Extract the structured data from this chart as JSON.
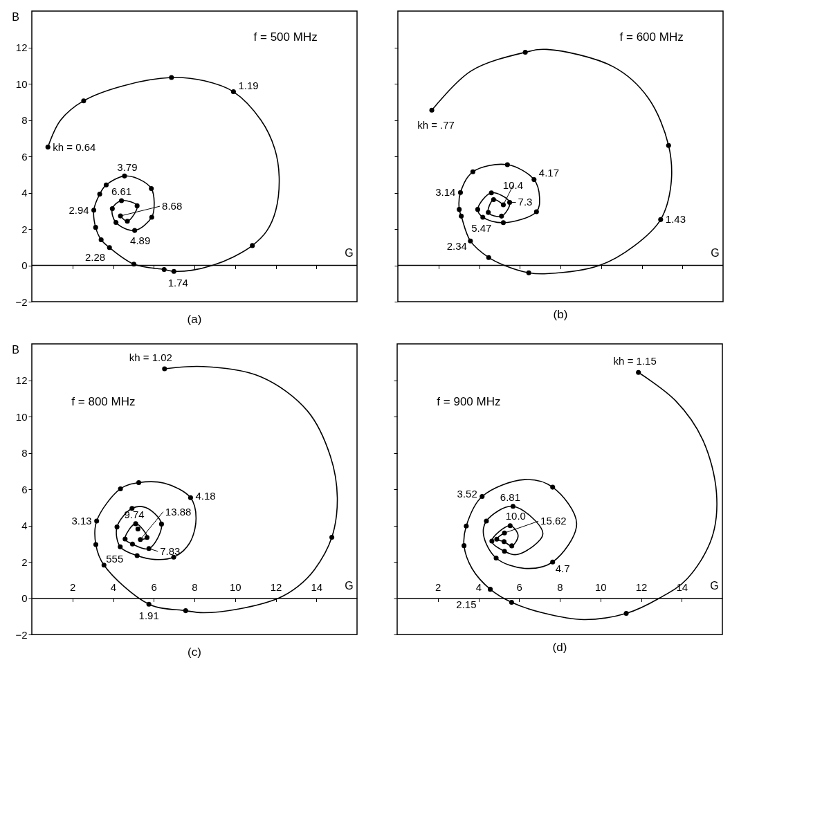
{
  "chart_data": [
    {
      "type": "line",
      "title": "(a)",
      "subtitle": "f = 500 MHz",
      "xlabel": "G",
      "ylabel": "B",
      "xlim": [
        0,
        16
      ],
      "ylim": [
        -2,
        14
      ],
      "xticks": [
        2,
        4,
        6,
        8,
        10,
        12,
        14
      ],
      "yticks": [
        -2,
        0,
        2,
        4,
        6,
        8,
        10,
        12
      ],
      "tick_labels": "y",
      "ref_lines": [
        {
          "axis": "y",
          "value": 0,
          "color": "#000000"
        }
      ],
      "series": [
        {
          "color": "#000000",
          "x": [
            0.79,
            1.42,
            2.55,
            4.47,
            6.87,
            8.49,
            9.92,
            11.27,
            11.95,
            12.17,
            12.0,
            11.55,
            10.85,
            9.91,
            8.89,
            7.87,
            6.99,
            6.51,
            5.02,
            3.82,
            3.41,
            3.14,
            3.05,
            3.34,
            3.66,
            4.56,
            5.32,
            5.88,
            6.02,
            5.9,
            5.06,
            4.14,
            3.96,
            4.41,
            5.18,
            4.7,
            4.36
          ],
          "values": [
            6.51,
            8.0,
            9.06,
            9.88,
            10.34,
            10.16,
            9.56,
            8.0,
            6.42,
            4.83,
            3.02,
            1.88,
            1.09,
            0.46,
            0.0,
            -0.27,
            -0.33,
            -0.23,
            0.07,
            0.98,
            1.41,
            2.09,
            3.04,
            3.92,
            4.43,
            4.92,
            4.72,
            4.23,
            3.47,
            2.65,
            1.92,
            2.36,
            3.12,
            3.56,
            3.28,
            2.43,
            2.72
          ]
        },
        {
          "type": "scatter",
          "marker": "circle",
          "color": "#000000",
          "x": [
            0.79,
            2.55,
            6.87,
            9.92,
            10.85,
            6.99,
            6.51,
            5.02,
            3.82,
            3.41,
            3.14,
            3.05,
            3.34,
            3.66,
            4.56,
            5.88,
            5.9,
            5.06,
            4.14,
            3.96,
            4.41,
            5.18,
            4.7,
            4.36
          ],
          "values": [
            6.51,
            9.06,
            10.34,
            9.56,
            1.09,
            -0.33,
            -0.23,
            0.07,
            0.98,
            1.41,
            2.09,
            3.04,
            3.92,
            4.43,
            4.92,
            4.23,
            2.65,
            1.92,
            2.36,
            3.12,
            3.56,
            3.28,
            2.43,
            2.72
          ]
        }
      ],
      "annotations": [
        {
          "text": "kh = 0.64",
          "x": 0.79,
          "y": 6.51
        },
        {
          "text": "1.19",
          "x": 9.92,
          "y": 9.56
        },
        {
          "text": "1.74",
          "x": 6.99,
          "y": -0.33
        },
        {
          "text": "2.28",
          "x": 3.82,
          "y": 0.98
        },
        {
          "text": "2.94",
          "x": 3.05,
          "y": 3.04
        },
        {
          "text": "3.79",
          "x": 4.56,
          "y": 4.92
        },
        {
          "text": "4.89",
          "x": 5.06,
          "y": 1.92
        },
        {
          "text": "6.61",
          "x": 4.41,
          "y": 3.56
        },
        {
          "text": "8.68",
          "x": 4.36,
          "y": 2.72
        }
      ]
    },
    {
      "type": "line",
      "title": "(b)",
      "subtitle": "f = 600 MHz",
      "xlabel": "G",
      "xlim": [
        0,
        16
      ],
      "ylim": [
        -2,
        14
      ],
      "xticks": [
        2,
        4,
        6,
        8,
        10,
        12,
        14
      ],
      "yticks": [
        -2,
        0,
        2,
        4,
        6,
        8,
        10,
        12
      ],
      "tick_labels": false,
      "ref_lines": [
        {
          "axis": "y",
          "value": 0,
          "color": "#000000"
        }
      ],
      "series": [
        {
          "color": "#000000",
          "x": [
            1.67,
            3.6,
            6.27,
            7.33,
            10.61,
            12.31,
            13.32,
            13.44,
            12.93,
            11.63,
            9.93,
            7.33,
            6.44,
            5.19,
            4.47,
            3.57,
            3.12,
            3.02,
            3.08,
            3.69,
            5.39,
            6.7,
            6.97,
            6.82,
            5.19,
            4.18,
            3.93,
            4.6,
            5.5,
            5.1,
            4.45,
            4.71,
            5.19
          ],
          "values": [
            8.54,
            10.7,
            11.73,
            11.89,
            10.93,
            9.23,
            6.6,
            4.47,
            2.52,
            1.07,
            0.0,
            -0.46,
            -0.41,
            0.02,
            0.43,
            1.34,
            2.71,
            3.08,
            4.01,
            5.15,
            5.54,
            4.72,
            3.73,
            2.95,
            2.35,
            2.65,
            3.08,
            3.99,
            3.47,
            2.71,
            2.91,
            3.62,
            3.33
          ]
        },
        {
          "type": "scatter",
          "marker": "circle",
          "color": "#000000",
          "x": [
            1.67,
            6.27,
            13.32,
            12.93,
            6.44,
            4.47,
            3.57,
            3.12,
            3.02,
            3.08,
            3.69,
            5.39,
            6.7,
            6.82,
            5.19,
            4.18,
            3.93,
            4.6,
            5.5,
            5.1,
            4.45,
            4.71,
            5.19
          ],
          "values": [
            8.54,
            11.73,
            6.6,
            2.52,
            -0.41,
            0.43,
            1.34,
            2.71,
            3.08,
            4.01,
            5.15,
            5.54,
            4.72,
            2.95,
            2.35,
            2.65,
            3.08,
            3.99,
            3.47,
            2.71,
            2.91,
            3.62,
            3.33
          ]
        }
      ],
      "annotations": [
        {
          "text": "kh = .77",
          "x": 1.67,
          "y": 8.54
        },
        {
          "text": "1.43",
          "x": 12.93,
          "y": 2.52
        },
        {
          "text": "2.34",
          "x": 3.57,
          "y": 1.34
        },
        {
          "text": "3.14",
          "x": 3.08,
          "y": 4.01
        },
        {
          "text": "4.17",
          "x": 6.7,
          "y": 4.72
        },
        {
          "text": "5.47",
          "x": 4.18,
          "y": 2.65
        },
        {
          "text": "7.3",
          "x": 5.5,
          "y": 3.47
        },
        {
          "text": "10.4",
          "x": 5.19,
          "y": 3.33
        }
      ]
    },
    {
      "type": "line",
      "title": "(c)",
      "subtitle": "f = 800 MHz",
      "xlabel": "G",
      "ylabel": "B",
      "xlim": [
        0,
        16
      ],
      "ylim": [
        -2,
        14
      ],
      "xticks": [
        2,
        4,
        6,
        8,
        10,
        12,
        14
      ],
      "yticks": [
        -2,
        0,
        2,
        4,
        6,
        8,
        10,
        12
      ],
      "series": [
        {
          "color": "#000000",
          "x": [
            6.53,
            8.44,
            11.28,
            13.56,
            14.69,
            15.03,
            14.76,
            13.9,
            13.1,
            12.14,
            10.15,
            8.44,
            7.57,
            5.76,
            3.55,
            3.15,
            3.19,
            4.36,
            5.26,
            6.51,
            7.81,
            8.08,
            7.76,
            6.98,
            6.06,
            5.18,
            4.35,
            4.19,
            4.93,
            5.6,
            6.38,
            5.76,
            4.95,
            4.59,
            5.11,
            5.67,
            5.34
          ],
          "values": [
            12.63,
            12.75,
            12.18,
            10.31,
            7.81,
            5.53,
            3.35,
            1.56,
            0.65,
            0.0,
            -0.6,
            -0.8,
            -0.69,
            -0.33,
            1.82,
            2.95,
            4.25,
            6.02,
            6.36,
            6.33,
            5.53,
            4.4,
            3.03,
            2.26,
            2.13,
            2.34,
            2.83,
            3.92,
            4.94,
            4.99,
            4.08,
            2.73,
            2.98,
            3.26,
            4.1,
            3.34,
            3.23
          ]
        },
        {
          "type": "scatter",
          "marker": "circle",
          "color": "#000000",
          "x": [
            6.53,
            14.76,
            7.57,
            5.76,
            3.55,
            3.15,
            3.19,
            4.36,
            5.26,
            7.81,
            6.98,
            5.18,
            4.35,
            4.19,
            4.93,
            6.38,
            5.76,
            4.95,
            4.59,
            5.11,
            5.67,
            5.22,
            5.34
          ],
          "values": [
            12.63,
            3.35,
            -0.69,
            -0.33,
            1.82,
            2.95,
            4.25,
            6.02,
            6.36,
            5.53,
            2.26,
            2.34,
            2.83,
            3.92,
            4.94,
            4.08,
            2.73,
            2.98,
            3.26,
            4.1,
            3.34,
            3.81,
            3.23
          ]
        }
      ],
      "annotations": [
        {
          "text": "kh = 1.02",
          "x": 6.53,
          "y": 12.63
        },
        {
          "text": "1.91",
          "x": 5.76,
          "y": -0.33
        },
        {
          "text": "3.13",
          "x": 3.19,
          "y": 4.25
        },
        {
          "text": "4.18",
          "x": 7.81,
          "y": 5.53
        },
        {
          "text": "555",
          "x": 4.35,
          "y": 2.83
        },
        {
          "text": "7.83",
          "x": 5.76,
          "y": 2.73
        },
        {
          "text": "9.74",
          "x": 5.11,
          "y": 4.1
        },
        {
          "text": "13.88",
          "x": 5.34,
          "y": 3.23
        }
      ]
    },
    {
      "type": "line",
      "title": "(d)",
      "subtitle": "f = 900 MHz",
      "xlabel": "G",
      "xlim": [
        0,
        16
      ],
      "ylim": [
        -2,
        14
      ],
      "xticks": [
        2,
        4,
        6,
        8,
        10,
        12,
        14
      ],
      "yticks": [
        -2,
        0,
        2,
        4,
        6,
        8,
        10,
        12
      ],
      "tick_labels": "x",
      "series": [
        {
          "color": "#000000",
          "x": [
            11.87,
            13.69,
            15.03,
            15.71,
            15.48,
            14.25,
            12.9,
            11.27,
            9.19,
            7.17,
            5.63,
            4.58,
            3.69,
            3.29,
            3.4,
            4.18,
            6.27,
            7.65,
            8.83,
            7.65,
            6.27,
            4.87,
            4.25,
            4.39,
            5.7,
            7.17,
            5.93,
            5.28,
            4.66,
            5.56,
            5.95,
            5.64,
            5.26,
            4.9,
            5.28
          ],
          "values": [
            12.43,
            10.88,
            8.73,
            5.8,
            3.31,
            1.05,
            0.0,
            -0.84,
            -1.18,
            -0.81,
            -0.23,
            0.49,
            1.62,
            2.89,
            3.97,
            5.6,
            6.53,
            6.11,
            4.1,
            1.99,
            1.64,
            2.21,
            3.48,
            4.25,
            5.06,
            3.54,
            2.41,
            2.58,
            3.14,
            3.99,
            3.45,
            2.88,
            3.11,
            3.25,
            3.59
          ]
        },
        {
          "type": "scatter",
          "marker": "circle",
          "color": "#000000",
          "x": [
            11.87,
            11.27,
            5.63,
            4.58,
            3.29,
            3.4,
            4.18,
            7.65,
            7.65,
            4.87,
            4.39,
            5.7,
            5.28,
            4.66,
            5.56,
            5.64,
            5.26,
            4.9,
            5.28
          ],
          "values": [
            12.43,
            -0.84,
            -0.23,
            0.49,
            2.89,
            3.97,
            5.6,
            6.11,
            1.99,
            2.21,
            4.25,
            5.06,
            2.58,
            3.14,
            3.99,
            2.88,
            3.11,
            3.25,
            3.59
          ]
        }
      ],
      "annotations": [
        {
          "text": "kh = 1.15",
          "x": 11.87,
          "y": 12.43
        },
        {
          "text": "2.15",
          "x": 4.58,
          "y": 0.49
        },
        {
          "text": "3.52",
          "x": 4.18,
          "y": 5.6
        },
        {
          "text": "4.7",
          "x": 7.65,
          "y": 1.99
        },
        {
          "text": "6.81",
          "x": 5.7,
          "y": 5.06
        },
        {
          "text": "10.0",
          "x": 5.56,
          "y": 3.99
        },
        {
          "text": "15.62",
          "x": 5.28,
          "y": 3.59
        }
      ]
    }
  ]
}
